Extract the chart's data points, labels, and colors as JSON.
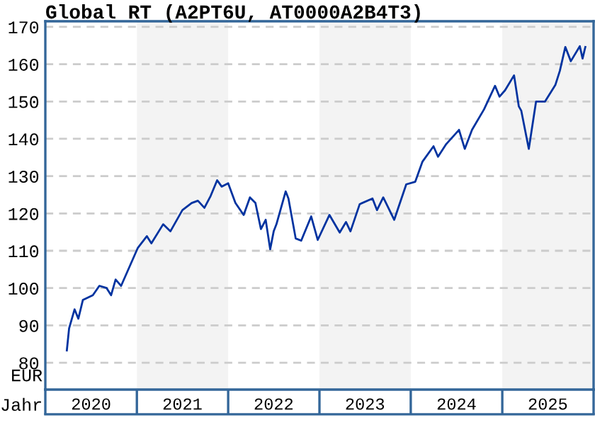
{
  "chart_data": {
    "type": "line",
    "title": "Global RT (A2PT6U, AT0000A2B4T3)",
    "xlabel": "Jahr",
    "ylabel": "EUR",
    "x": [
      "2020-03-27",
      "2020-04-05",
      "2020-04-27",
      "2020-05-12",
      "2020-05-30",
      "2020-07-09",
      "2020-08-04",
      "2020-09-02",
      "2020-09-20",
      "2020-10-08",
      "2020-10-30",
      "2021-01-05",
      "2021-02-10",
      "2021-02-28",
      "2021-04-16",
      "2021-05-15",
      "2021-07-02",
      "2021-08-08",
      "2021-09-02",
      "2021-09-28",
      "2021-10-23",
      "2021-11-18",
      "2021-12-06",
      "2022-01-01",
      "2022-01-30",
      "2022-03-04",
      "2022-03-29",
      "2022-04-20",
      "2022-05-12",
      "2022-05-31",
      "2022-06-18",
      "2022-07-02",
      "2022-07-13",
      "2022-08-19",
      "2022-08-30",
      "2022-09-28",
      "2022-10-20",
      "2022-11-29",
      "2022-12-25",
      "2023-02-10",
      "2023-03-23",
      "2023-04-17",
      "2023-05-05",
      "2023-06-11",
      "2023-08-01",
      "2023-08-19",
      "2023-09-13",
      "2023-10-27",
      "2023-12-14",
      "2024-01-19",
      "2024-02-17",
      "2024-04-01",
      "2024-04-19",
      "2024-05-22",
      "2024-07-12",
      "2024-08-04",
      "2024-09-02",
      "2024-10-20",
      "2024-12-03",
      "2024-12-21",
      "2025-01-12",
      "2025-02-17",
      "2025-03-08",
      "2025-03-18",
      "2025-04-17",
      "2025-05-16",
      "2025-06-21",
      "2025-08-01",
      "2025-08-19",
      "2025-09-10",
      "2025-10-02",
      "2025-11-07",
      "2025-11-18",
      "2025-11-29"
    ],
    "series": [
      {
        "color": "#0033a0",
        "values": [
          83.3,
          89.2,
          94.3,
          91.8,
          96.8,
          98.1,
          100.6,
          100.0,
          98.1,
          102.3,
          100.6,
          110.8,
          113.9,
          112.0,
          117.1,
          115.2,
          120.9,
          122.8,
          123.4,
          121.5,
          124.7,
          128.9,
          127.2,
          128.1,
          122.8,
          119.6,
          124.3,
          122.8,
          115.8,
          118.3,
          110.4,
          115.2,
          117.1,
          125.9,
          124.0,
          113.3,
          112.7,
          119.2,
          112.9,
          119.6,
          114.9,
          117.7,
          115.2,
          122.5,
          124.0,
          120.9,
          124.3,
          118.3,
          127.8,
          128.5,
          133.9,
          138.0,
          135.2,
          138.6,
          142.4,
          137.3,
          142.4,
          147.9,
          154.2,
          151.3,
          153.0,
          157.0,
          148.7,
          147.5,
          137.3,
          150.0,
          150.0,
          154.4,
          158.2,
          164.6,
          160.8,
          164.8,
          161.5,
          164.6
        ]
      }
    ],
    "xlim": [
      "2020-01-01",
      "2026-01-01"
    ],
    "xticks": [
      {
        "value": "2020-07-02",
        "label": "2020"
      },
      {
        "value": "2021-07-02",
        "label": "2021"
      },
      {
        "value": "2022-07-02",
        "label": "2022"
      },
      {
        "value": "2023-07-02",
        "label": "2023"
      },
      {
        "value": "2024-07-02",
        "label": "2024"
      },
      {
        "value": "2025-07-02",
        "label": "2025"
      }
    ],
    "ylim": [
      72.8,
      171.5
    ],
    "yticks": [
      80,
      90,
      100,
      110,
      120,
      130,
      140,
      150,
      160,
      170
    ],
    "bands": [
      {
        "axis": "x",
        "from": "2021-01-01",
        "to": "2022-01-01",
        "color": "#f3f3f3"
      },
      {
        "axis": "x",
        "from": "2023-01-01",
        "to": "2024-01-01",
        "color": "#f3f3f3"
      },
      {
        "axis": "x",
        "from": "2025-01-01",
        "to": "2026-01-01",
        "color": "#f3f3f3"
      }
    ],
    "grid": "y",
    "line_style": "solid",
    "marker": "none"
  }
}
